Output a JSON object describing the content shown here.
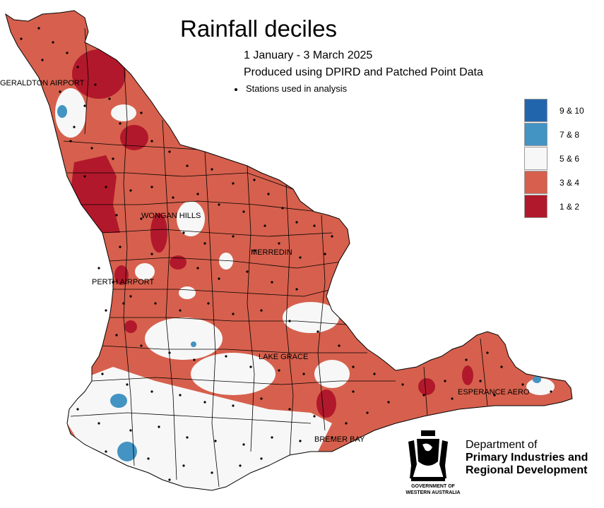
{
  "title": "Rainfall deciles",
  "subtitle_period": "1 January - 3 March 2025",
  "subtitle_source": "Produced using DPIRD and Patched Point Data",
  "stations_label": "Stations used in analysis",
  "legend": [
    {
      "label": "9 & 10",
      "color": "#2166ac"
    },
    {
      "label": "7 & 8",
      "color": "#4393c3"
    },
    {
      "label": "5 & 6",
      "color": "#f7f7f7"
    },
    {
      "label": "3 & 4",
      "color": "#d6604d"
    },
    {
      "label": "1 & 2",
      "color": "#b2182b"
    }
  ],
  "towns": {
    "geraldton": "GERALDTON AIRPORT",
    "wongan_hills": "WONGAN HILLS",
    "merredin": "MERREDIN",
    "perth": "PERTH AIRPORT",
    "lake_grace": "LAKE GRACE",
    "esperance": "ESPERANCE AERO",
    "bremer_bay": "BREMER BAY"
  },
  "department": {
    "line1": "Department of",
    "line2": "Primary Industries and",
    "line3": "Regional Development"
  },
  "crest_caption": {
    "line1": "GOVERNMENT OF",
    "line2": "WESTERN AUSTRALIA"
  }
}
